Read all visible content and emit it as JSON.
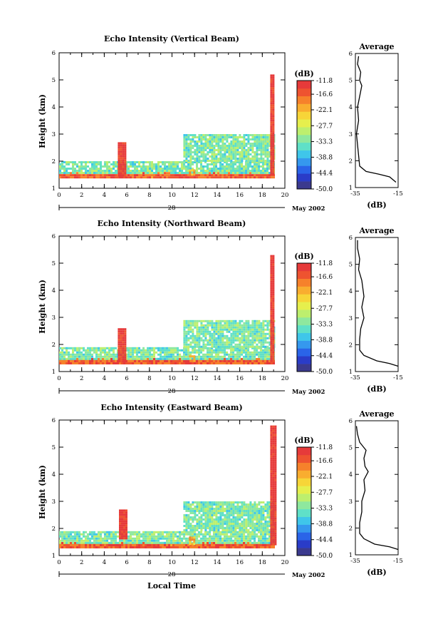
{
  "figure": {
    "xlabel": "Local Time",
    "ylabel": "Height (km)",
    "date_label": "May 2002",
    "day_label": "28",
    "colorbar_unit": "(dB)",
    "average_title": "Average",
    "average_xlabel": "(dB)"
  },
  "colorbar": {
    "levels": [
      -11.8,
      -16.6,
      -22.1,
      -27.7,
      -33.3,
      -38.8,
      -44.4,
      -50.0
    ],
    "tick_labels": [
      "-11.8",
      "-16.6",
      "-22.1",
      "-27.7",
      "-33.3",
      "-38.8",
      "-44.4",
      "-50.0"
    ],
    "colors": [
      "#3b3a8e",
      "#2a3cc8",
      "#2a64e8",
      "#3598ee",
      "#3fc6ea",
      "#5fe0c8",
      "#8ee89e",
      "#bdef6e",
      "#e6ef4d",
      "#f7d538",
      "#f9ad2f",
      "#f6812b",
      "#ee5330",
      "#e63a3a"
    ]
  },
  "chart_data": [
    {
      "type": "heatmap",
      "title": "Echo Intensity (Vertical Beam)",
      "xlabel": "",
      "ylabel": "Height (km)",
      "xlim": [
        0,
        20
      ],
      "ylim": [
        1,
        6
      ],
      "x_ticks": [
        0,
        2,
        4,
        6,
        8,
        10,
        12,
        14,
        16,
        18,
        20
      ],
      "y_ticks": [
        1,
        2,
        3,
        4,
        5,
        6
      ],
      "colorbar_range_db": [
        -50.0,
        -11.8
      ],
      "features": [
        {
          "time": [
            0,
            19
          ],
          "height": [
            1.4,
            1.6
          ],
          "level_db": -16
        },
        {
          "time": [
            0,
            19
          ],
          "height": [
            1.6,
            2.0
          ],
          "level_db": -33
        },
        {
          "time": [
            5.2,
            5.8
          ],
          "height": [
            1.5,
            2.7
          ],
          "level_db": -13
        },
        {
          "time": [
            11.5,
            12.0
          ],
          "height": [
            1.5,
            1.7
          ],
          "level_db": -22
        },
        {
          "time": [
            11,
            19
          ],
          "height": [
            2.0,
            3.0
          ],
          "level_db": -33
        },
        {
          "time": [
            18.7,
            19.0
          ],
          "height": [
            1.5,
            5.2
          ],
          "level_db": -13
        }
      ],
      "average_profile": {
        "xlim": [
          -35,
          -15
        ],
        "x_ticks": [
          -35,
          -15
        ],
        "height": [
          1.2,
          1.4,
          1.5,
          1.6,
          1.8,
          2.2,
          2.6,
          3.0,
          3.5,
          4.0,
          4.4,
          4.8,
          5.0,
          5.3,
          5.6,
          5.9
        ],
        "db": [
          -16,
          -19,
          -24,
          -30,
          -33,
          -33.5,
          -34,
          -34.5,
          -33.5,
          -34,
          -33,
          -32,
          -33,
          -32.5,
          -34,
          -33.5
        ]
      }
    },
    {
      "type": "heatmap",
      "title": "Echo Intensity (Northward Beam)",
      "xlabel": "",
      "ylabel": "Height (km)",
      "xlim": [
        0,
        20
      ],
      "ylim": [
        1,
        6
      ],
      "x_ticks": [
        0,
        2,
        4,
        6,
        8,
        10,
        12,
        14,
        16,
        18,
        20
      ],
      "y_ticks": [
        1,
        2,
        3,
        4,
        5,
        6
      ],
      "colorbar_range_db": [
        -50.0,
        -11.8
      ],
      "features": [
        {
          "time": [
            0,
            19
          ],
          "height": [
            1.3,
            1.5
          ],
          "level_db": -16
        },
        {
          "time": [
            0,
            19
          ],
          "height": [
            1.5,
            1.9
          ],
          "level_db": -33
        },
        {
          "time": [
            5.2,
            5.8
          ],
          "height": [
            1.4,
            2.6
          ],
          "level_db": -13
        },
        {
          "time": [
            11.5,
            12.0
          ],
          "height": [
            1.4,
            1.6
          ],
          "level_db": -22
        },
        {
          "time": [
            11,
            19
          ],
          "height": [
            1.9,
            2.9
          ],
          "level_db": -33
        },
        {
          "time": [
            18.7,
            19.0
          ],
          "height": [
            1.4,
            5.3
          ],
          "level_db": -13
        }
      ],
      "average_profile": {
        "xlim": [
          -35,
          -15
        ],
        "x_ticks": [
          -35,
          -15
        ],
        "height": [
          1.2,
          1.3,
          1.4,
          1.6,
          1.8,
          2.2,
          2.6,
          3.0,
          3.4,
          3.8,
          4.1,
          4.4,
          4.8,
          5.2,
          5.6,
          5.9
        ],
        "db": [
          -15,
          -19,
          -25,
          -31,
          -33,
          -33,
          -32.5,
          -31,
          -32,
          -31,
          -31.5,
          -32,
          -33.5,
          -33,
          -34,
          -34
        ]
      }
    },
    {
      "type": "heatmap",
      "title": "Echo Intensity (Eastward Beam)",
      "xlabel": "Local Time",
      "ylabel": "Height (km)",
      "xlim": [
        0,
        20
      ],
      "ylim": [
        1,
        6
      ],
      "x_ticks": [
        0,
        2,
        4,
        6,
        8,
        10,
        12,
        14,
        16,
        18,
        20
      ],
      "y_ticks": [
        1,
        2,
        3,
        4,
        5,
        6
      ],
      "colorbar_range_db": [
        -50.0,
        -11.8
      ],
      "features": [
        {
          "time": [
            0,
            19
          ],
          "height": [
            1.3,
            1.5
          ],
          "level_db": -16
        },
        {
          "time": [
            0,
            19
          ],
          "height": [
            1.5,
            1.9
          ],
          "level_db": -33
        },
        {
          "time": [
            5.3,
            5.9
          ],
          "height": [
            1.6,
            2.7
          ],
          "level_db": -13
        },
        {
          "time": [
            11.5,
            12.0
          ],
          "height": [
            1.4,
            1.7
          ],
          "level_db": -22
        },
        {
          "time": [
            11,
            19
          ],
          "height": [
            1.9,
            3.0
          ],
          "level_db": -33
        },
        {
          "time": [
            18.7,
            19.1
          ],
          "height": [
            1.4,
            5.8
          ],
          "level_db": -12
        }
      ],
      "average_profile": {
        "xlim": [
          -35,
          -15
        ],
        "x_ticks": [
          -35,
          -15
        ],
        "height": [
          1.2,
          1.3,
          1.4,
          1.6,
          1.8,
          2.2,
          2.6,
          3.0,
          3.4,
          3.8,
          4.1,
          4.3,
          4.6,
          4.9,
          5.2,
          5.5,
          5.8
        ],
        "db": [
          -15,
          -19,
          -26,
          -31,
          -33,
          -33,
          -32,
          -32,
          -30.5,
          -31,
          -29,
          -30.5,
          -31,
          -30,
          -33,
          -34,
          -34.5
        ]
      }
    }
  ]
}
